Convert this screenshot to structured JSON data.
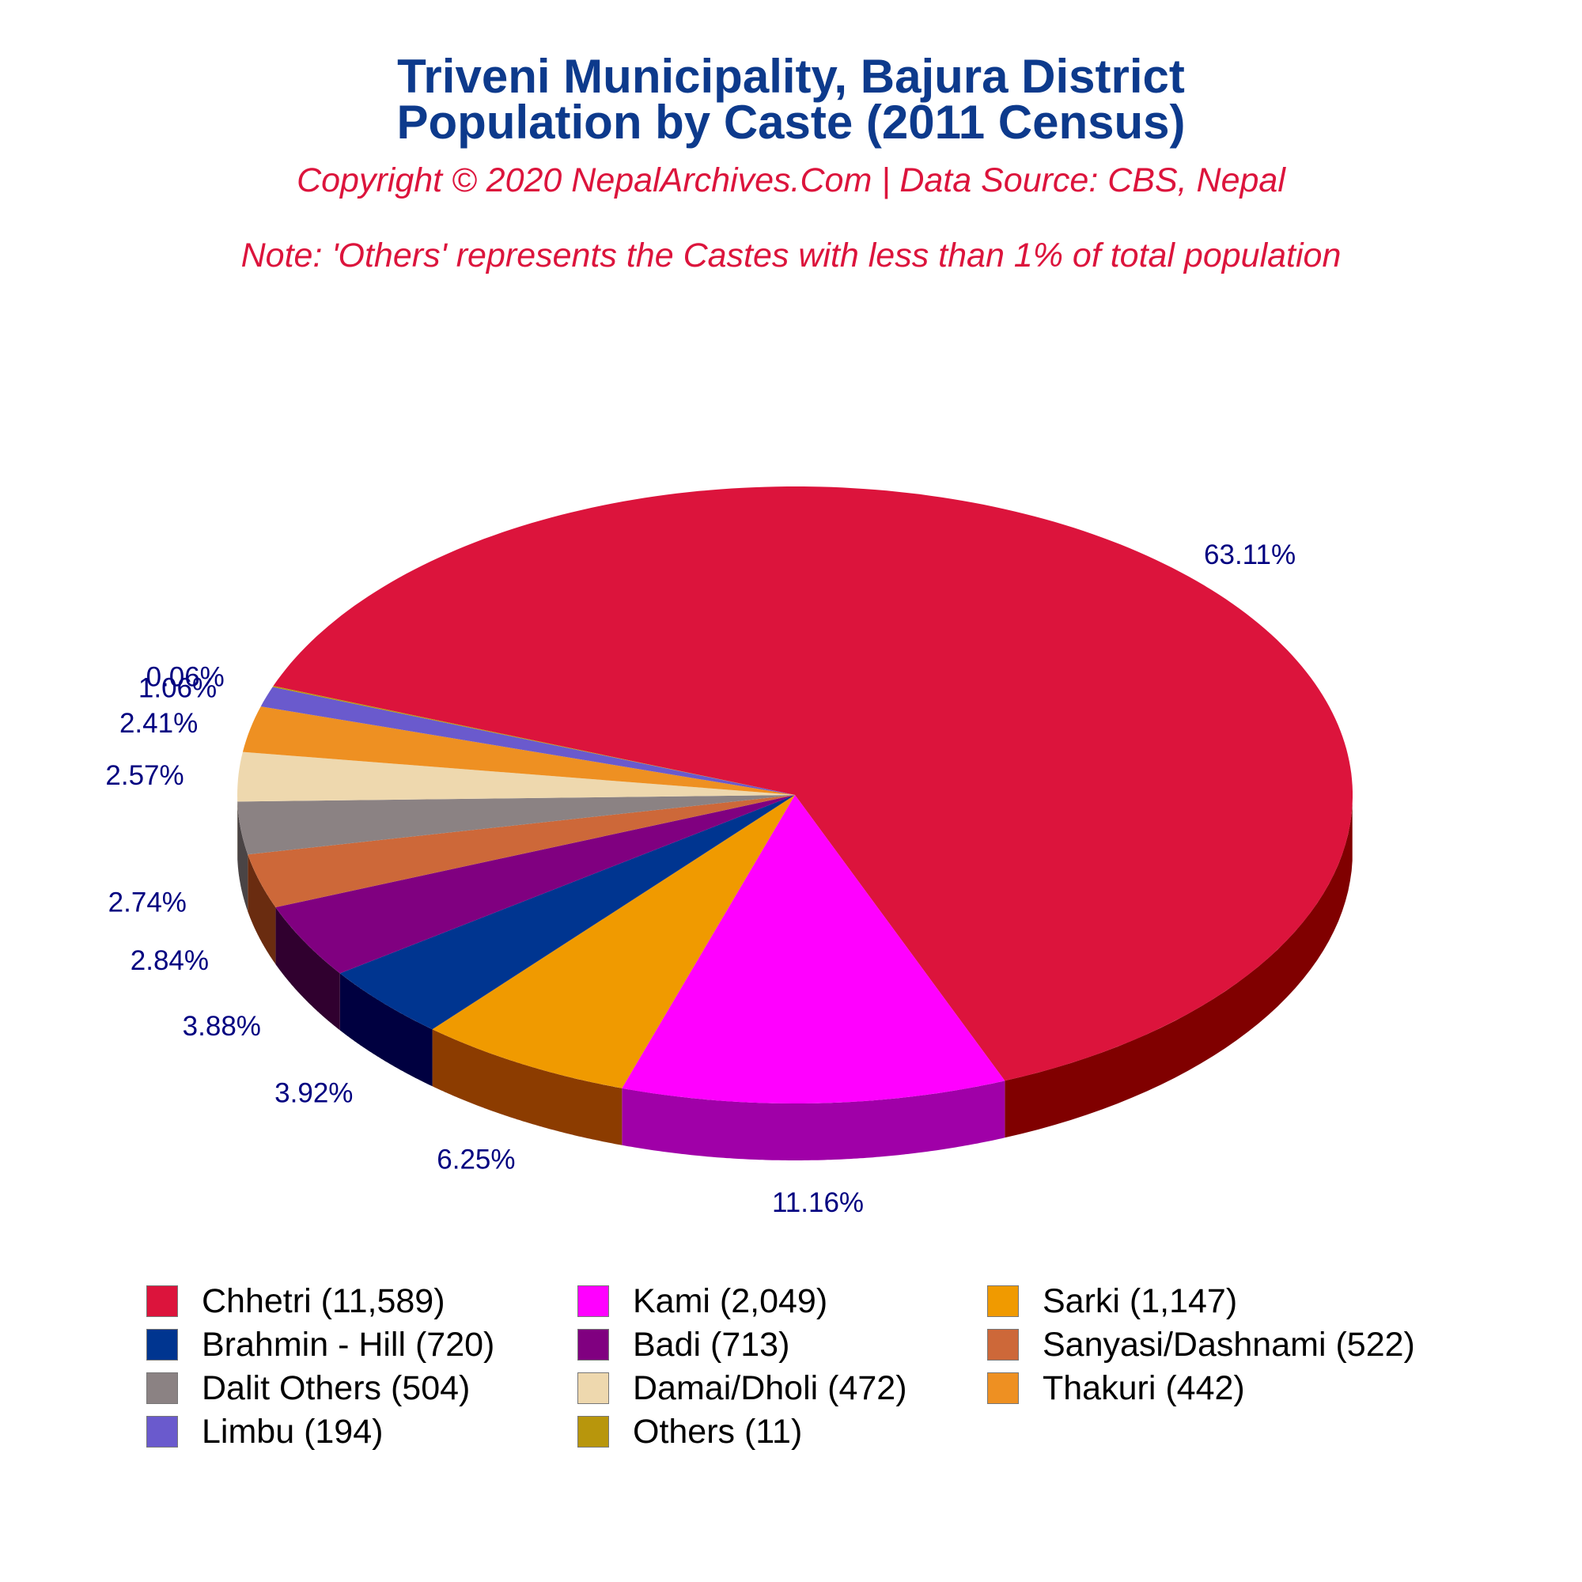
{
  "title_line1": "Triveni Municipality, Bajura District",
  "title_line2": "Population by Caste (2011 Census)",
  "copyright": "Copyright © 2020 NepalArchives.Com | Data Source: CBS, Nepal",
  "note": "Note: 'Others' represents the Castes with less than 1% of total population",
  "chart_data": {
    "type": "pie",
    "style": "3d",
    "legend_placement": "bottom",
    "slices": [
      {
        "label": "Chhetri",
        "value": 11589,
        "percent": "63.11%",
        "legend": "Chhetri (11,589)",
        "color": "#dc143c",
        "side_color": "#800000"
      },
      {
        "label": "Kami",
        "value": 2049,
        "percent": "11.16%",
        "legend": "Kami (2,049)",
        "color": "#ff00ff",
        "side_color": "#a000a8"
      },
      {
        "label": "Sarki",
        "value": 1147,
        "percent": "6.25%",
        "legend": "Sarki (1,147)",
        "color": "#f09a00",
        "side_color": "#8c3c00"
      },
      {
        "label": "Brahmin - Hill",
        "value": 720,
        "percent": "3.92%",
        "legend": "Brahmin - Hill (720)",
        "color": "#003590",
        "side_color": "#000040"
      },
      {
        "label": "Badi",
        "value": 713,
        "percent": "3.88%",
        "legend": "Badi (713)",
        "color": "#800080",
        "side_color": "#30002f"
      },
      {
        "label": "Sanyasi/Dashnami",
        "value": 522,
        "percent": "2.84%",
        "legend": "Sanyasi/Dashnami (522)",
        "color": "#cd6839",
        "side_color": "#6a2c10"
      },
      {
        "label": "Dalit Others",
        "value": 504,
        "percent": "2.74%",
        "legend": "Dalit Others (504)",
        "color": "#8b8283",
        "side_color": "#4a4445"
      },
      {
        "label": "Damai/Dholi",
        "value": 472,
        "percent": "2.57%",
        "legend": "Damai/Dholi (472)",
        "color": "#eed8ae",
        "side_color": "#a08c64"
      },
      {
        "label": "Thakuri",
        "value": 442,
        "percent": "2.41%",
        "legend": "Thakuri (442)",
        "color": "#ee9022",
        "side_color": "#8c4e08"
      },
      {
        "label": "Limbu",
        "value": 194,
        "percent": "1.06%",
        "legend": "Limbu (194)",
        "color": "#6a5acd",
        "side_color": "#362a80"
      },
      {
        "label": "Others",
        "value": 11,
        "percent": "0.06%",
        "legend": "Others (11)",
        "color": "#b8960c",
        "side_color": "#6a5404"
      }
    ]
  }
}
